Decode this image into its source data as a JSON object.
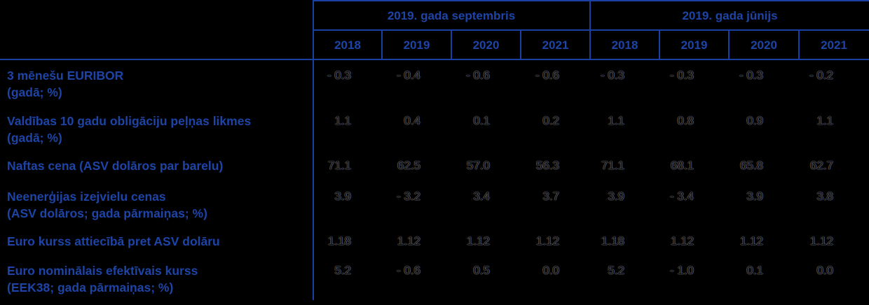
{
  "colors": {
    "background": "#000000",
    "accent_blue_text": "#1d44a6",
    "grid_line_blue": "#1b40a4",
    "value_text": "#0e0f13"
  },
  "header": {
    "groups": [
      {
        "label": "2019. gada septembris"
      },
      {
        "label": "2019. gada jūnijs"
      }
    ],
    "years": [
      "2018",
      "2019",
      "2020",
      "2021",
      "2018",
      "2019",
      "2020",
      "2021"
    ]
  },
  "rows": [
    {
      "label_line1": "3 mēnešu EURIBOR",
      "label_line2": "(gadā; %)",
      "values": [
        "- 0.3",
        "- 0.4",
        "- 0.6",
        "- 0.6",
        "- 0.3",
        "- 0.3",
        "- 0.3",
        "- 0.2"
      ]
    },
    {
      "label_line1": "Valdības 10 gadu obligāciju peļņas likmes",
      "label_line2": "(gadā; %)",
      "values": [
        "1.1",
        "0.4",
        "0.1",
        "0.2",
        "1.1",
        "0.8",
        "0.9",
        "1.1"
      ]
    },
    {
      "label_line1": "Naftas cena (ASV dolāros par barelu)",
      "label_line2": "",
      "values": [
        "71.1",
        "62.5",
        "57.0",
        "56.3",
        "71.1",
        "68.1",
        "65.8",
        "62.7"
      ]
    },
    {
      "label_line1": "Neenerģijas izejvielu cenas",
      "label_line2": "(ASV dolāros; gada pārmaiņas; %)",
      "values": [
        "3.9",
        "- 3.2",
        "3.4",
        "3.7",
        "3.9",
        "- 3.4",
        "3.9",
        "3.8"
      ]
    },
    {
      "label_line1": "Euro kurss attiecībā pret ASV dolāru",
      "label_line2": "",
      "values": [
        "1.18",
        "1.12",
        "1.12",
        "1.12",
        "1.18",
        "1.12",
        "1.12",
        "1.12"
      ]
    },
    {
      "label_line1": "Euro nominālais efektīvais kurss",
      "label_line2": "(EEK38; gada pārmaiņas; %)",
      "values": [
        "5.2",
        "- 0.6",
        "0.5",
        "0.0",
        "5.2",
        "- 1.0",
        "0.1",
        "0.0"
      ]
    }
  ],
  "chart_data": {
    "type": "table",
    "column_groups": [
      {
        "label": "2019. gada septembris",
        "columns": [
          "2018",
          "2019",
          "2020",
          "2021"
        ]
      },
      {
        "label": "2019. gada jūnijs",
        "columns": [
          "2018",
          "2019",
          "2020",
          "2021"
        ]
      }
    ],
    "rows": [
      {
        "label": "3 mēnešu EURIBOR (gadā; %)",
        "septembris": [
          -0.3,
          -0.4,
          -0.6,
          -0.6
        ],
        "junijs": [
          -0.3,
          -0.3,
          -0.3,
          -0.2
        ]
      },
      {
        "label": "Valdības 10 gadu obligāciju peļņas likmes (gadā; %)",
        "septembris": [
          1.1,
          0.4,
          0.1,
          0.2
        ],
        "junijs": [
          1.1,
          0.8,
          0.9,
          1.1
        ]
      },
      {
        "label": "Naftas cena (ASV dolāros par barelu)",
        "septembris": [
          71.1,
          62.5,
          57.0,
          56.3
        ],
        "junijs": [
          71.1,
          68.1,
          65.8,
          62.7
        ]
      },
      {
        "label": "Neenerģijas izejvielu cenas (ASV dolāros; gada pārmaiņas; %)",
        "septembris": [
          3.9,
          -3.2,
          3.4,
          3.7
        ],
        "junijs": [
          3.9,
          -3.4,
          3.9,
          3.8
        ]
      },
      {
        "label": "Euro kurss attiecībā pret ASV dolāru",
        "septembris": [
          1.18,
          1.12,
          1.12,
          1.12
        ],
        "junijs": [
          1.18,
          1.12,
          1.12,
          1.12
        ]
      },
      {
        "label": "Euro nominālais efektīvais kurss (EEK38; gada pārmaiņas; %)",
        "septembris": [
          5.2,
          -0.6,
          0.5,
          0.0
        ],
        "junijs": [
          5.2,
          -1.0,
          0.1,
          0.0
        ]
      }
    ]
  }
}
